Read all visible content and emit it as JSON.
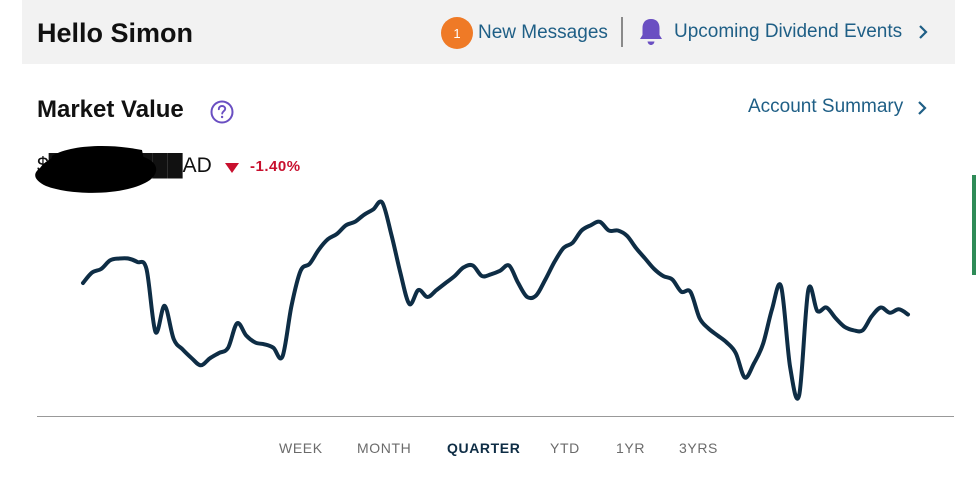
{
  "header": {
    "greeting": "Hello Simon",
    "messages_count": "1",
    "messages_label": "New Messages",
    "dividend_label": "Upcoming Dividend Events"
  },
  "market": {
    "title": "Market Value",
    "account_summary_label": "Account Summary",
    "value_text": "$█████████AD",
    "change_pct": "-1.40%"
  },
  "periods": {
    "items": [
      "WEEK",
      "MONTH",
      "QUARTER",
      "YTD",
      "1YR",
      "3YRS"
    ],
    "selected": "QUARTER"
  },
  "colors": {
    "accent_link": "#1f5f86",
    "badge": "#ef7a26",
    "bell": "#6a4fc2",
    "negative": "#c8102e",
    "line": "#0e2d45"
  },
  "icons": {
    "messages": "chat-bubble-icon",
    "dividend": "bell-icon",
    "help": "question-circle-icon",
    "change_direction": "triangle-down-icon",
    "chevron": "chevron-right-icon"
  },
  "chart_data": {
    "type": "line",
    "series": [
      {
        "values": [
          68,
          74,
          76,
          81,
          82,
          82,
          80,
          76,
          40,
          55,
          36,
          30,
          25,
          21,
          25,
          28,
          31,
          45,
          38,
          34,
          33,
          31,
          26,
          55,
          75,
          79,
          87,
          93,
          96,
          101,
          103,
          107,
          110,
          114,
          96,
          74,
          56,
          64,
          60,
          64,
          68,
          72,
          77,
          78,
          72,
          73,
          75,
          78,
          68,
          60,
          61,
          70,
          80,
          88,
          91,
          98,
          101,
          103,
          98,
          98,
          95,
          88,
          82,
          76,
          72,
          70,
          63,
          63,
          48,
          42,
          38,
          34,
          28,
          14,
          22,
          33,
          53,
          66,
          20,
          4,
          64,
          52,
          54,
          48,
          43,
          41,
          41,
          49,
          54,
          51,
          53,
          50
        ]
      }
    ],
    "ylim": [
      0,
      120
    ]
  }
}
